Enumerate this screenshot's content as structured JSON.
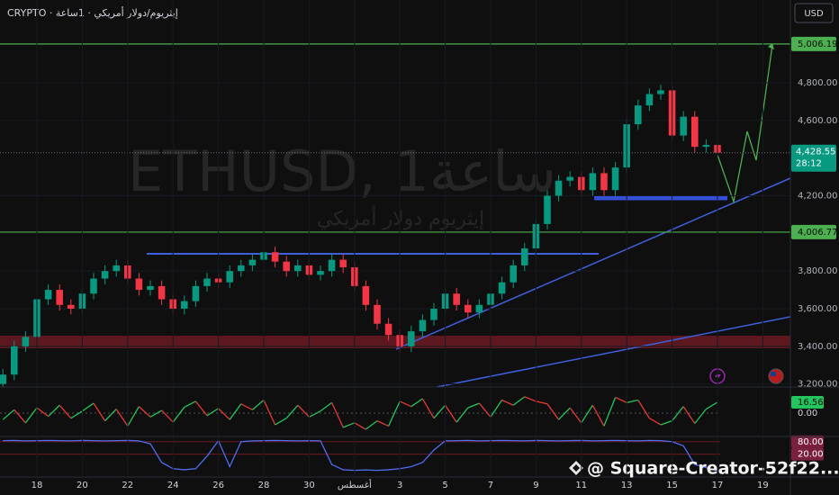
{
  "chart_data": [
    {
      "type": "candlestick",
      "header": "CRYPTO · إيثريوم/دولار أمريكي · 1ساعة",
      "title": "ETHUSD, 1ساعة",
      "subtitle": "إيثريوم دولار أمريكي",
      "currency": "USD",
      "xlim": [
        -0.254,
        69.43
      ],
      "xticks": [
        {
          "value": 3,
          "label": "18"
        },
        {
          "value": 7,
          "label": "20"
        },
        {
          "value": 11,
          "label": "22"
        },
        {
          "value": 15,
          "label": "24"
        },
        {
          "value": 19,
          "label": "26"
        },
        {
          "value": 23,
          "label": "28"
        },
        {
          "value": 27,
          "label": "30"
        },
        {
          "value": 31,
          "label": "أغسطس"
        },
        {
          "value": 35,
          "label": "3"
        },
        {
          "value": 39,
          "label": "5"
        },
        {
          "value": 43,
          "label": "7"
        },
        {
          "value": 47,
          "label": "9"
        },
        {
          "value": 51,
          "label": "11"
        },
        {
          "value": 55,
          "label": "13"
        },
        {
          "value": 59,
          "label": "15"
        },
        {
          "value": 63,
          "label": "17"
        },
        {
          "value": 67,
          "label": "19"
        }
      ],
      "ylim": [
        3184,
        5240
      ],
      "yticks": [
        {
          "value": 3200,
          "label": "3,200.00"
        },
        {
          "value": 3400,
          "label": "3,400.00"
        },
        {
          "value": 3600,
          "label": "3,600.00"
        },
        {
          "value": 3800,
          "label": "3,800.00"
        },
        {
          "value": 4200,
          "label": "4,200.00"
        },
        {
          "value": 4600,
          "label": "4,600.00"
        },
        {
          "value": 4800,
          "label": "4,800.00"
        }
      ],
      "open": [
        3200,
        3250,
        3400,
        3450,
        3650,
        3700,
        3620,
        3600,
        3680,
        3760,
        3800,
        3830,
        3760,
        3700,
        3720,
        3650,
        3600,
        3640,
        3720,
        3760,
        3740,
        3800,
        3830,
        3860,
        3900,
        3850,
        3800,
        3830,
        3780,
        3800,
        3860,
        3820,
        3720,
        3620,
        3520,
        3460,
        3400,
        3480,
        3540,
        3600,
        3680,
        3620,
        3580,
        3620,
        3680,
        3740,
        3830,
        3920,
        4050,
        4200,
        4280,
        4300,
        4230,
        4320,
        4230,
        4350,
        4580,
        4680,
        4740,
        4760,
        4520,
        4620,
        4460,
        4470
      ],
      "high": [
        3280,
        3430,
        3480,
        3680,
        3730,
        3730,
        3650,
        3710,
        3790,
        3830,
        3860,
        3860,
        3790,
        3750,
        3750,
        3680,
        3670,
        3750,
        3790,
        3790,
        3830,
        3860,
        3890,
        3930,
        3930,
        3880,
        3860,
        3860,
        3830,
        3890,
        3890,
        3850,
        3750,
        3650,
        3550,
        3490,
        3510,
        3570,
        3630,
        3710,
        3710,
        3650,
        3650,
        3710,
        3770,
        3860,
        3950,
        4080,
        4230,
        4310,
        4330,
        4330,
        4350,
        4350,
        4380,
        4610,
        4710,
        4770,
        4790,
        4790,
        4650,
        4650,
        4500,
        4500
      ],
      "low": [
        3170,
        3220,
        3370,
        3420,
        3620,
        3590,
        3570,
        3570,
        3650,
        3730,
        3770,
        3730,
        3670,
        3670,
        3620,
        3570,
        3570,
        3610,
        3690,
        3710,
        3710,
        3770,
        3800,
        3830,
        3820,
        3770,
        3770,
        3750,
        3750,
        3770,
        3790,
        3690,
        3590,
        3490,
        3430,
        3370,
        3370,
        3450,
        3510,
        3570,
        3590,
        3550,
        3550,
        3590,
        3650,
        3710,
        3800,
        3890,
        4020,
        4170,
        4250,
        4200,
        4200,
        4200,
        4200,
        4320,
        4550,
        4650,
        4710,
        4490,
        4490,
        4430,
        4430,
        4400
      ],
      "close": [
        3250,
        3400,
        3450,
        3650,
        3700,
        3620,
        3600,
        3680,
        3760,
        3800,
        3830,
        3760,
        3700,
        3720,
        3650,
        3600,
        3640,
        3720,
        3760,
        3740,
        3800,
        3830,
        3860,
        3900,
        3850,
        3800,
        3830,
        3780,
        3800,
        3860,
        3820,
        3720,
        3620,
        3520,
        3460,
        3400,
        3480,
        3540,
        3600,
        3680,
        3620,
        3580,
        3620,
        3680,
        3740,
        3830,
        3920,
        4050,
        4200,
        4280,
        4300,
        4230,
        4320,
        4230,
        4350,
        4580,
        4680,
        4740,
        4760,
        4520,
        4620,
        4460,
        4470,
        4428.55
      ],
      "up_color": "#089981",
      "down_color": "#f23645",
      "levels": [
        {
          "value": 5006.19,
          "label": "5,006.19"
        },
        {
          "value": 4006.77,
          "label": "4,006.77"
        }
      ],
      "level_color": "#4caf50",
      "last_price": {
        "value": 4428.55,
        "label": "4,428.55"
      },
      "countdown": "28:12"
    },
    {
      "type": "line",
      "values": [
        -10,
        5,
        -15,
        8,
        -5,
        12,
        -8,
        3,
        15,
        -12,
        6,
        -20,
        10,
        -6,
        4,
        -14,
        9,
        18,
        -4,
        7,
        -10,
        14,
        5,
        20,
        -18,
        -8,
        12,
        -6,
        3,
        16,
        -22,
        -15,
        -25,
        -12,
        -20,
        18,
        10,
        22,
        -8,
        12,
        -14,
        8,
        15,
        -6,
        20,
        12,
        25,
        18,
        14,
        -10,
        8,
        -15,
        12,
        -20,
        24,
        16,
        20,
        -8,
        -18,
        -12,
        10,
        -16,
        6,
        16.56
      ],
      "ylim": [
        -36,
        40
      ],
      "yticks": [
        {
          "value": 0,
          "label": "0.00"
        }
      ],
      "up_color": "#22c55e",
      "down_color": "#e53935"
    },
    {
      "type": "line",
      "values": [
        85,
        86,
        84,
        85,
        86,
        85,
        84,
        86,
        85,
        84,
        85,
        86,
        84,
        70,
        -20,
        -50,
        -55,
        -50,
        10,
        85,
        -40,
        80,
        84,
        85,
        86,
        85,
        84,
        85,
        84,
        -30,
        -55,
        -58,
        -56,
        -58,
        -55,
        -50,
        -40,
        -20,
        40,
        84,
        85,
        86,
        84,
        85,
        86,
        85,
        84,
        86,
        85,
        84,
        85,
        86,
        84,
        85,
        86,
        85,
        84,
        86,
        85,
        80,
        60,
        -30,
        -45,
        -60
      ],
      "ylim": [
        -90,
        105
      ],
      "yticks": [
        {
          "value": 80,
          "label": "80.00"
        },
        {
          "value": 20,
          "label": "20.00"
        }
      ],
      "color": "#4f6ef0"
    }
  ],
  "overlay": {
    "credit": "@ Square-Creator-52f22..."
  }
}
